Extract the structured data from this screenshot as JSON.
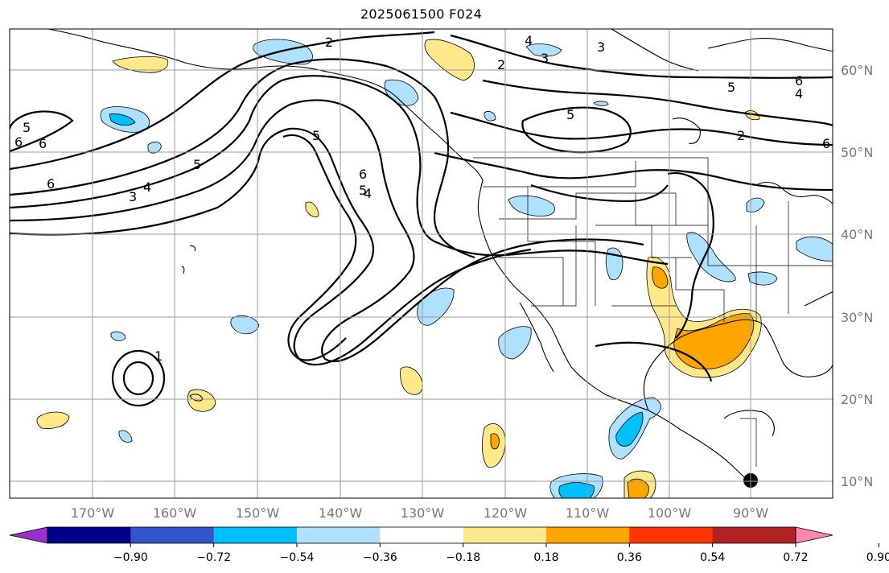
{
  "title": "2025061500 F024",
  "lon_labels": [
    "170°W",
    "160°W",
    "150°W",
    "140°W",
    "130°W",
    "120°W",
    "110°W",
    "100°W",
    "90°W"
  ],
  "lat_labels": [
    "60°N",
    "50°N",
    "40°N",
    "30°N",
    "20°N",
    "10°N"
  ],
  "colorbar": {
    "colors": [
      "#9b30d0",
      "#000088",
      "#3355cc",
      "#00bfff",
      "#aee0ff",
      "#ffffff",
      "#ffe88a",
      "#ffa500",
      "#ff3300",
      "#b22222",
      "#ff88aa"
    ],
    "tick_labels": [
      "−0.90",
      "−0.72",
      "−0.54",
      "−0.36",
      "−0.18",
      "0.18",
      "0.36",
      "0.54",
      "0.72",
      "0.90"
    ]
  },
  "contour_labels": [
    "2",
    "2",
    "3",
    "3",
    "4",
    "5",
    "6",
    "6",
    "4",
    "5",
    "2",
    "5",
    "6",
    "6",
    "5",
    "4",
    "3",
    "5",
    "6",
    "5",
    "6",
    "4",
    "1"
  ]
}
